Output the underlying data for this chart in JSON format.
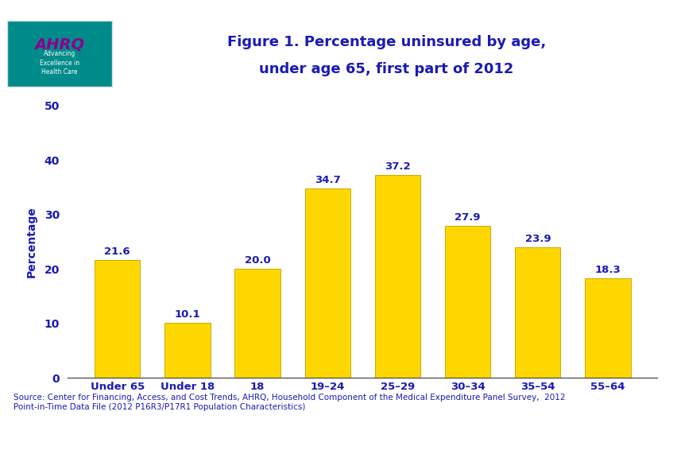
{
  "title_line1": "Figure 1. Percentage uninsured by age,",
  "title_line2": "under age 65, first part of 2012",
  "categories": [
    "Under 65",
    "Under 18",
    "18",
    "19–24",
    "25–29",
    "30–34",
    "35–54",
    "55–64"
  ],
  "values": [
    21.6,
    10.1,
    20.0,
    34.7,
    37.2,
    27.9,
    23.9,
    18.3
  ],
  "bar_color": "#FFD700",
  "bar_edgecolor": "#CCA800",
  "ylabel": "Percentage",
  "ylim": [
    0,
    50
  ],
  "yticks": [
    0,
    10,
    20,
    30,
    40,
    50
  ],
  "label_color": "#1a1ab5",
  "axis_color": "#555555",
  "title_color": "#1a1ab5",
  "xlabel_color": "#1a1ab5",
  "background_color": "#ffffff",
  "border_color": "#1a1ab5",
  "header_bg": "#ffffff",
  "logo_teal": "#008B8B",
  "logo_border": "#dddddd",
  "source_text_line1": "Source: Center for Financing, Access, and Cost Trends, AHRQ, Household Component of the Medical Expenditure Panel Survey,  2012",
  "source_text_line2": "Point-in-Time Data File (2012 P16R3/P17R1 Population Characteristics)",
  "label_fontsize": 9.5,
  "title_fontsize": 13,
  "ylabel_fontsize": 10,
  "xlabel_fontsize": 9.5,
  "source_fontsize": 7.5
}
